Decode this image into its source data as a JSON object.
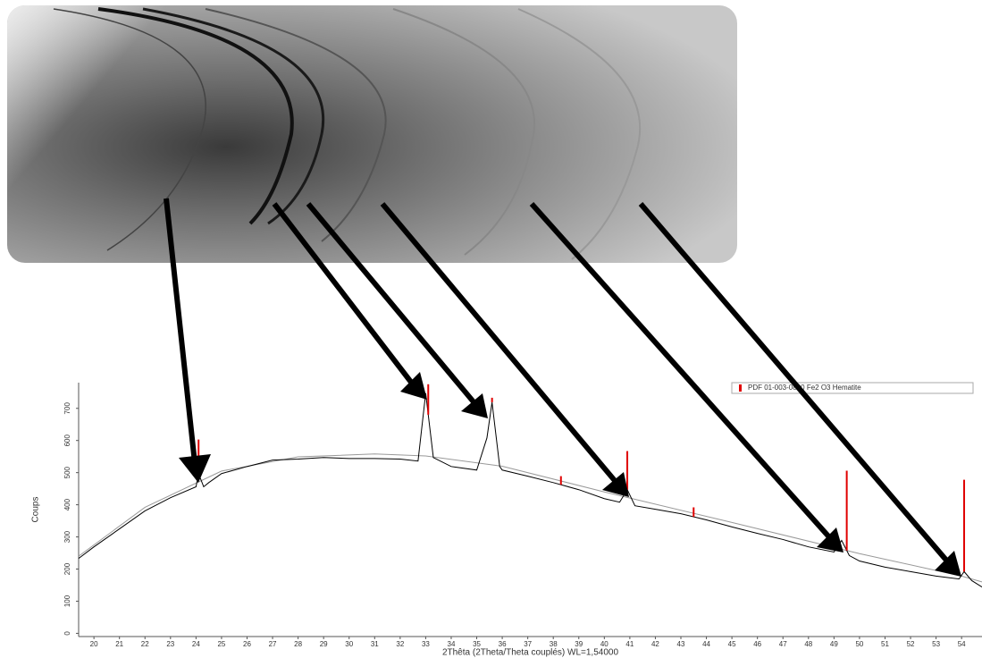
{
  "chart_data": {
    "type": "line",
    "x_label": "2Thêta (2Theta/Theta couplés) WL=1,54000",
    "y_label": "Coups",
    "xlim": [
      19.4,
      54.8
    ],
    "ylim": [
      -10,
      780
    ],
    "xticks": [
      20,
      21,
      22,
      23,
      24,
      25,
      26,
      27,
      28,
      29,
      30,
      31,
      32,
      33,
      34,
      35,
      36,
      37,
      38,
      39,
      40,
      41,
      42,
      43,
      44,
      45,
      46,
      47,
      48,
      49,
      50,
      51,
      52,
      53,
      54
    ],
    "yticks": [
      0,
      100,
      200,
      300,
      400,
      500,
      600,
      700
    ],
    "legend": "upper right",
    "series": [
      {
        "color": "#000000",
        "x": [
          19.4,
          20,
          21,
          22,
          23,
          24,
          24.1,
          24.3,
          24.5,
          25,
          26,
          27,
          28,
          29,
          30,
          31,
          32,
          32.7,
          33.0,
          33.3,
          34,
          35,
          35.4,
          35.6,
          35.9,
          36,
          37,
          38,
          39,
          40,
          40.6,
          40.9,
          41.2,
          42,
          43,
          44,
          45,
          46,
          47,
          48,
          49,
          49.3,
          49.6,
          50,
          51,
          52,
          53,
          53.9,
          54.1,
          54.4,
          54.8
        ],
        "values": [
          233,
          269,
          325,
          381,
          422,
          456,
          497,
          456,
          469,
          497,
          519,
          539,
          542,
          547,
          544,
          544,
          542,
          536,
          747,
          547,
          519,
          508,
          608,
          719,
          519,
          508,
          489,
          469,
          447,
          419,
          408,
          447,
          397,
          386,
          372,
          353,
          331,
          311,
          292,
          269,
          253,
          289,
          242,
          225,
          206,
          192,
          178,
          169,
          192,
          164,
          144
        ]
      },
      {
        "color": "#999999",
        "x": [
          19.4,
          22,
          25,
          28,
          31,
          33,
          36,
          40,
          45,
          50,
          54,
          54.8
        ],
        "values": [
          240,
          392,
          505,
          549,
          558,
          552,
          520,
          440,
          345,
          248,
          178,
          160
        ]
      },
      {
        "type": "stem",
        "name": "PDF 01-003-0800 Fe2 O3 Hematite",
        "color": "#e00000",
        "x": [
          24.1,
          33.1,
          35.6,
          38.3,
          40.9,
          43.5,
          49.5,
          54.1
        ],
        "values": [
          603,
          775,
          733,
          489,
          567,
          392,
          506,
          478
        ]
      }
    ]
  }
}
